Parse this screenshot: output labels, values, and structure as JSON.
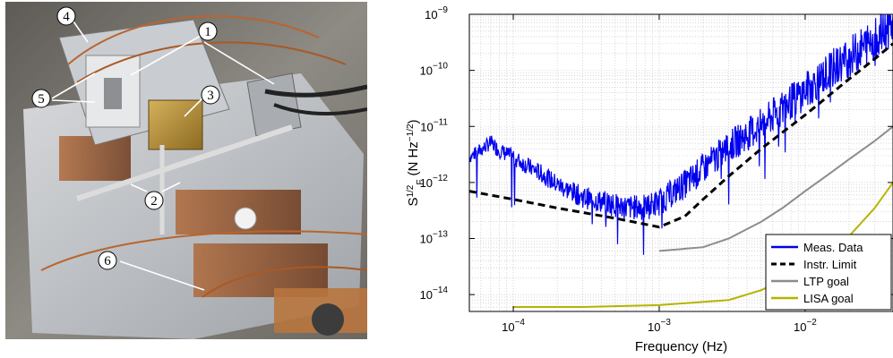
{
  "photo": {
    "callouts": [
      {
        "id": "4"
      },
      {
        "id": "1"
      },
      {
        "id": "5"
      },
      {
        "id": "3"
      },
      {
        "id": "2"
      },
      {
        "id": "6"
      }
    ]
  },
  "chart_data": {
    "type": "line",
    "xlabel": "Frequency (Hz)",
    "ylabel_main": "S",
    "ylabel_sup": "1/2",
    "ylabel_sub": "F",
    "ylabel_unit": "(N Hz",
    "ylabel_unit_sup": "−1/2",
    "ylabel_close": ")",
    "x_scale": "log",
    "y_scale": "log",
    "xlim": [
      5e-05,
      0.04
    ],
    "ylim": [
      5e-15,
      1e-09
    ],
    "grid": true,
    "legend_position": "bottom-right",
    "x_ticks": [
      {
        "value": 0.0001,
        "base": "10",
        "exp": "−4"
      },
      {
        "value": 0.001,
        "base": "10",
        "exp": "−3"
      },
      {
        "value": 0.01,
        "base": "10",
        "exp": "−2"
      }
    ],
    "y_ticks": [
      {
        "value": 1e-09,
        "base": "10",
        "exp": "−9"
      },
      {
        "value": 1e-10,
        "base": "10",
        "exp": "−10"
      },
      {
        "value": 1e-11,
        "base": "10",
        "exp": "−11"
      },
      {
        "value": 1e-12,
        "base": "10",
        "exp": "−12"
      },
      {
        "value": 1e-13,
        "base": "10",
        "exp": "−13"
      },
      {
        "value": 1e-14,
        "base": "10",
        "exp": "−14"
      }
    ],
    "series": [
      {
        "name": "Meas. Data",
        "color": "#0000ee",
        "style": "solid",
        "points": [
          [
            5e-05,
            3e-12
          ],
          [
            6e-05,
            4e-12
          ],
          [
            7e-05,
            5.5e-12
          ],
          [
            8e-05,
            4e-12
          ],
          [
            0.0001,
            3e-12
          ],
          [
            0.00013,
            2e-12
          ],
          [
            0.00016,
            1.5e-12
          ],
          [
            0.0002,
            1e-12
          ],
          [
            0.0003,
            6e-13
          ],
          [
            0.0004,
            5e-13
          ],
          [
            0.0006,
            4e-13
          ],
          [
            0.0008,
            4e-13
          ],
          [
            0.001,
            5e-13
          ],
          [
            0.0013,
            8e-13
          ],
          [
            0.0016,
            1.2e-12
          ],
          [
            0.002,
            2e-12
          ],
          [
            0.003,
            5e-12
          ],
          [
            0.005,
            1.2e-11
          ],
          [
            0.007,
            2.5e-11
          ],
          [
            0.01,
            5e-11
          ],
          [
            0.015,
            1.2e-10
          ],
          [
            0.02,
            2e-10
          ],
          [
            0.03,
            4.5e-10
          ],
          [
            0.04,
            8e-10
          ]
        ]
      },
      {
        "name": "Instr. Limit",
        "color": "#000000",
        "style": "dashed",
        "points": [
          [
            5e-05,
            7e-13
          ],
          [
            0.0001,
            5e-13
          ],
          [
            0.0002,
            3.5e-13
          ],
          [
            0.0005,
            2.3e-13
          ],
          [
            0.001,
            1.6e-13
          ],
          [
            0.0015,
            2.5e-13
          ],
          [
            0.002,
            5e-13
          ],
          [
            0.003,
            1.3e-12
          ],
          [
            0.005,
            4e-12
          ],
          [
            0.01,
            1.6e-11
          ],
          [
            0.02,
            7e-11
          ],
          [
            0.03,
            1.6e-10
          ],
          [
            0.04,
            3e-10
          ]
        ]
      },
      {
        "name": "LTP goal",
        "color": "#8c8c8c",
        "style": "solid",
        "points": [
          [
            0.001,
            6e-14
          ],
          [
            0.002,
            7e-14
          ],
          [
            0.003,
            1e-13
          ],
          [
            0.005,
            2e-13
          ],
          [
            0.007,
            3.5e-13
          ],
          [
            0.01,
            7e-13
          ],
          [
            0.015,
            1.5e-12
          ],
          [
            0.02,
            2.6e-12
          ],
          [
            0.03,
            5.5e-12
          ],
          [
            0.04,
            1e-11
          ]
        ]
      },
      {
        "name": "LISA goal",
        "color": "#b4b400",
        "style": "solid",
        "points": [
          [
            0.0001,
            6e-15
          ],
          [
            0.0003,
            6e-15
          ],
          [
            0.001,
            6.5e-15
          ],
          [
            0.003,
            8e-15
          ],
          [
            0.005,
            1.2e-14
          ],
          [
            0.007,
            1.8e-14
          ],
          [
            0.01,
            3e-14
          ],
          [
            0.015,
            6e-14
          ],
          [
            0.02,
            1.1e-13
          ],
          [
            0.03,
            3.5e-13
          ],
          [
            0.04,
            1e-12
          ]
        ]
      }
    ]
  }
}
